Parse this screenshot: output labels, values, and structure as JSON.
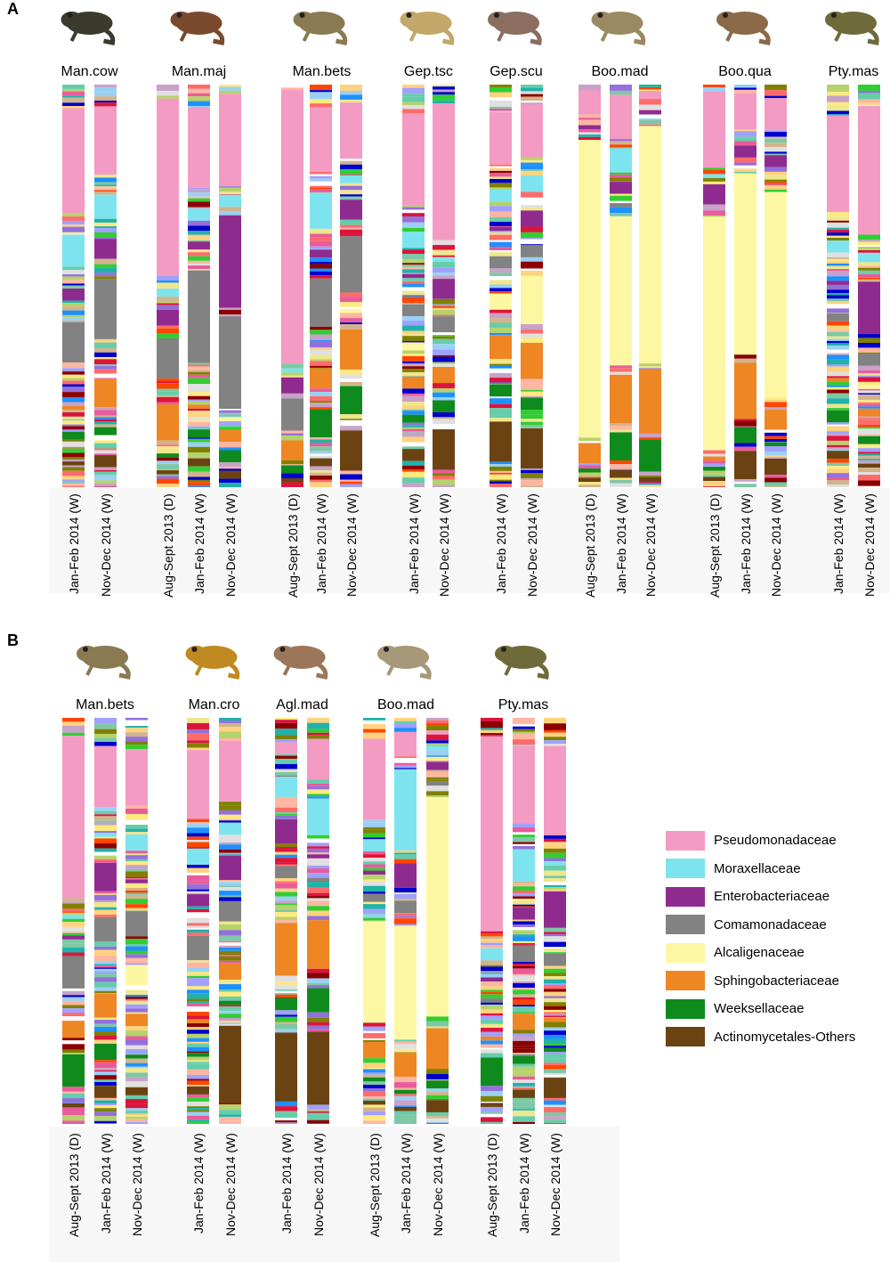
{
  "panels": [
    {
      "letter": "A",
      "groups": [
        {
          "species": "Man.cow",
          "bars": [
            "Jan-Feb 2014 (W)",
            "Nov-Dec 2014 (W)"
          ]
        },
        {
          "species": "Man.maj",
          "bars": [
            "Aug-Sept 2013 (D)",
            "Jan-Feb 2014 (W)",
            "Nov-Dec 2014 (W)"
          ]
        },
        {
          "species": "Man.bets",
          "bars": [
            "Aug-Sept 2013 (D)",
            "Jan-Feb 2014 (W)",
            "Nov-Dec 2014 (W)"
          ]
        },
        {
          "species": "Gep.tsc",
          "bars": [
            "Jan-Feb 2014 (W)",
            "Nov-Dec 2014 (W)"
          ]
        },
        {
          "species": "Gep.scu",
          "bars": [
            "Jan-Feb 2014 (W)",
            "Nov-Dec 2014 (W)"
          ]
        },
        {
          "species": "Boo.mad",
          "bars": [
            "Aug-Sept 2013 (D)",
            "Jan-Feb 2014 (W)",
            "Nov-Dec 2014 (W)"
          ]
        },
        {
          "species": "Boo.qua",
          "bars": [
            "Aug-Sept 2013 (D)",
            "Jan-Feb 2014 (W)",
            "Nov-Dec 2014 (W)"
          ]
        },
        {
          "species": "Pty.mas",
          "bars": [
            "Jan-Feb 2014 (W)",
            "Nov-Dec 2014 (W)"
          ]
        }
      ]
    },
    {
      "letter": "B",
      "groups": [
        {
          "species": "Man.bets",
          "bars": [
            "Aug-Sept 2013 (D)",
            "Jan-Feb 2014 (W)",
            "Nov-Dec 2014 (W)"
          ]
        },
        {
          "species": "Man.cro",
          "bars": [
            "Jan-Feb 2014 (W)",
            "Nov-Dec 2014 (W)"
          ]
        },
        {
          "species": "Agl.mad",
          "bars": [
            "Jan-Feb 2014 (W)",
            "Nov-Dec 2014 (W)"
          ]
        },
        {
          "species": "Boo.mad",
          "bars": [
            "Aug-Sept 2013 (D)",
            "Jan-Feb 2014 (W)",
            "Nov-Dec 2014 (W)"
          ]
        },
        {
          "species": "Pty.mas",
          "bars": [
            "Aug-Sept 2013 (D)",
            "Jan-Feb 2014 (W)",
            "Nov-Dec 2014 (W)"
          ]
        }
      ]
    }
  ],
  "legend": [
    {
      "label": "Pseudomonadaceae",
      "color": "#f39bc3"
    },
    {
      "label": "Moraxellaceae",
      "color": "#7de4ef"
    },
    {
      "label": "Enterobacteriaceae",
      "color": "#8f2b8f"
    },
    {
      "label": "Comamonadaceae",
      "color": "#828282"
    },
    {
      "label": "Alcaligenaceae",
      "color": "#fdf7a3"
    },
    {
      "label": "Sphingobacteriaceae",
      "color": "#ee8624"
    },
    {
      "label": "Weeksellaceae",
      "color": "#0f8b1e"
    },
    {
      "label": "Actinomycetales-Others",
      "color": "#6b4312"
    }
  ],
  "chart_data": {
    "type": "bar",
    "stacked": true,
    "ylim": [
      0,
      100
    ],
    "series": [
      "Pseudomonadaceae",
      "Moraxellaceae",
      "Enterobacteriaceae",
      "Comamonadaceae",
      "Alcaligenaceae",
      "Sphingobacteriaceae",
      "Weeksellaceae",
      "Actinomycetales-Others"
    ],
    "bars": [
      {
        "panel": "A",
        "species": "Man.cow",
        "sample": "Jan-Feb 2014 (W)",
        "values": [
          26,
          8,
          3,
          10,
          0,
          1,
          2,
          1
        ]
      },
      {
        "panel": "A",
        "species": "Man.cow",
        "sample": "Nov-Dec 2014 (W)",
        "values": [
          17,
          6,
          5,
          15,
          0,
          7,
          2,
          3
        ]
      },
      {
        "panel": "A",
        "species": "Man.maj",
        "sample": "Aug-Sept 2013 (D)",
        "values": [
          44,
          2,
          4,
          10,
          0,
          9,
          1,
          1
        ]
      },
      {
        "panel": "A",
        "species": "Man.maj",
        "sample": "Jan-Feb 2014 (W)",
        "values": [
          20,
          3,
          2,
          23,
          0,
          1,
          2,
          2
        ]
      },
      {
        "panel": "A",
        "species": "Man.maj",
        "sample": "Nov-Dec 2014 (W)",
        "values": [
          23,
          3,
          23,
          23,
          1,
          3,
          3,
          2
        ]
      },
      {
        "panel": "A",
        "species": "Man.bets",
        "sample": "Aug-Sept 2013 (D)",
        "values": [
          68,
          1,
          4,
          8,
          0,
          5,
          2,
          1
        ]
      },
      {
        "panel": "A",
        "species": "Man.bets",
        "sample": "Jan-Feb 2014 (W)",
        "values": [
          16,
          9,
          2,
          12,
          0,
          5,
          7,
          2
        ]
      },
      {
        "panel": "A",
        "species": "Man.bets",
        "sample": "Nov-Dec 2014 (W)",
        "values": [
          14,
          2,
          5,
          14,
          1,
          10,
          7,
          10
        ]
      },
      {
        "panel": "A",
        "species": "Gep.tsc",
        "sample": "Jan-Feb 2014 (W)",
        "values": [
          23,
          4,
          1,
          3,
          2,
          3,
          2,
          3
        ]
      },
      {
        "panel": "A",
        "species": "Gep.tsc",
        "sample": "Nov-Dec 2014 (W)",
        "values": [
          34,
          1,
          5,
          4,
          0,
          4,
          3,
          10
        ]
      },
      {
        "panel": "A",
        "species": "Gep.scu",
        "sample": "Jan-Feb 2014 (W)",
        "values": [
          13,
          3,
          1,
          3,
          4,
          6,
          3,
          10
        ]
      },
      {
        "panel": "A",
        "species": "Gep.scu",
        "sample": "Nov-Dec 2014 (W)",
        "values": [
          13,
          4,
          4,
          3,
          12,
          9,
          3,
          10
        ]
      },
      {
        "panel": "A",
        "species": "Boo.mad",
        "sample": "Aug-Sept 2013 (D)",
        "values": [
          6,
          0,
          1,
          0,
          74,
          5,
          1,
          1
        ]
      },
      {
        "panel": "A",
        "species": "Boo.mad",
        "sample": "Jan-Feb 2014 (W)",
        "values": [
          11,
          6,
          3,
          1,
          37,
          12,
          7,
          2
        ]
      },
      {
        "panel": "A",
        "species": "Boo.mad",
        "sample": "Nov-Dec 2014 (W)",
        "values": [
          2,
          0,
          1,
          0,
          59,
          16,
          8,
          1
        ]
      },
      {
        "panel": "A",
        "species": "Boo.qua",
        "sample": "Aug-Sept 2013 (D)",
        "values": [
          19,
          1,
          5,
          0,
          58,
          1,
          1,
          1
        ]
      },
      {
        "panel": "A",
        "species": "Boo.qua",
        "sample": "Jan-Feb 2014 (W)",
        "values": [
          9,
          0,
          3,
          0,
          45,
          14,
          4,
          7
        ]
      },
      {
        "panel": "A",
        "species": "Boo.qua",
        "sample": "Nov-Dec 2014 (W)",
        "values": [
          8,
          0,
          3,
          0,
          51,
          5,
          1,
          4
        ]
      },
      {
        "panel": "A",
        "species": "Pty.mas",
        "sample": "Jan-Feb 2014 (W)",
        "values": [
          24,
          3,
          1,
          2,
          0,
          1,
          3,
          2
        ]
      },
      {
        "panel": "A",
        "species": "Pty.mas",
        "sample": "Nov-Dec 2014 (W)",
        "values": [
          32,
          2,
          13,
          3,
          1,
          2,
          2,
          1
        ]
      },
      {
        "panel": "B",
        "species": "Man.bets",
        "sample": "Aug-Sept 2013 (D)",
        "values": [
          40,
          1,
          1,
          8,
          0,
          4,
          8,
          1
        ]
      },
      {
        "panel": "B",
        "species": "Man.bets",
        "sample": "Jan-Feb 2014 (W)",
        "values": [
          15,
          1,
          7,
          6,
          0,
          6,
          4,
          3
        ]
      },
      {
        "panel": "B",
        "species": "Man.bets",
        "sample": "Nov-Dec 2014 (W)",
        "values": [
          14,
          4,
          1,
          6,
          5,
          3,
          1,
          2
        ]
      },
      {
        "panel": "B",
        "species": "Man.cro",
        "sample": "Jan-Feb 2014 (W)",
        "values": [
          17,
          4,
          3,
          6,
          0,
          1,
          1,
          2
        ]
      },
      {
        "panel": "B",
        "species": "Man.cro",
        "sample": "Nov-Dec 2014 (W)",
        "values": [
          15,
          3,
          6,
          5,
          0,
          4,
          1,
          19
        ]
      },
      {
        "panel": "B",
        "species": "Agl.mad",
        "sample": "Jan-Feb 2014 (W)",
        "values": [
          3,
          5,
          6,
          3,
          0,
          13,
          3,
          17
        ]
      },
      {
        "panel": "B",
        "species": "Agl.mad",
        "sample": "Nov-Dec 2014 (W)",
        "values": [
          10,
          9,
          1,
          1,
          0,
          12,
          6,
          18
        ]
      },
      {
        "panel": "B",
        "species": "Boo.mad",
        "sample": "Aug-Sept 2013 (D)",
        "values": [
          20,
          3,
          1,
          2,
          25,
          4,
          1,
          1
        ]
      },
      {
        "panel": "B",
        "species": "Boo.mad",
        "sample": "Jan-Feb 2014 (W)",
        "values": [
          6,
          20,
          6,
          3,
          28,
          6,
          1,
          1
        ]
      },
      {
        "panel": "B",
        "species": "Boo.mad",
        "sample": "Nov-Dec 2014 (W)",
        "values": [
          1,
          1,
          2,
          1,
          54,
          10,
          2,
          3
        ]
      },
      {
        "panel": "B",
        "species": "Pty.mas",
        "sample": "Aug-Sept 2013 (D)",
        "values": [
          48,
          3,
          1,
          1,
          0,
          1,
          7,
          1
        ]
      },
      {
        "panel": "B",
        "species": "Pty.mas",
        "sample": "Jan-Feb 2014 (W)",
        "values": [
          19,
          8,
          3,
          4,
          0,
          4,
          2,
          2
        ]
      },
      {
        "panel": "B",
        "species": "Pty.mas",
        "sample": "Nov-Dec 2014 (W)",
        "values": [
          22,
          1,
          9,
          3,
          0,
          1,
          1,
          5
        ]
      }
    ]
  }
}
